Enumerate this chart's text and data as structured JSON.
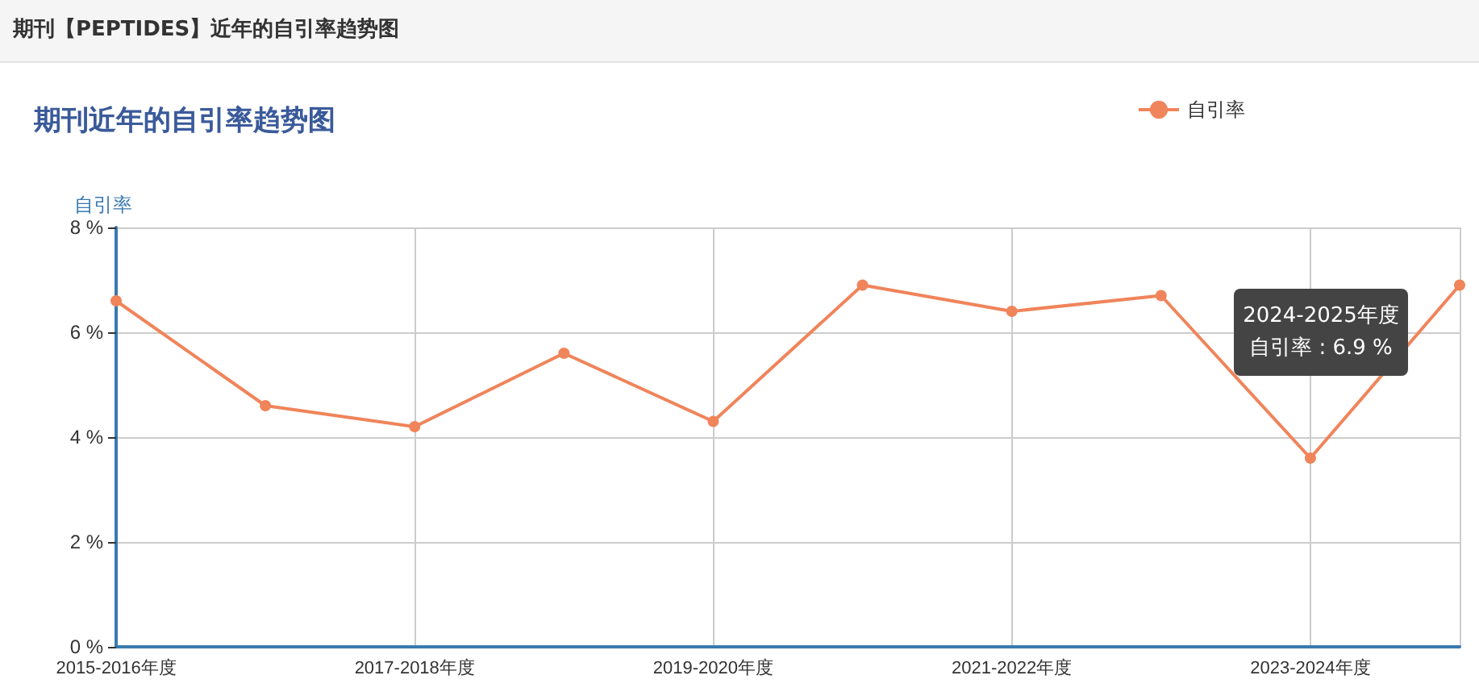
{
  "chart_data": {
    "type": "line",
    "title": "期刊【PEPTIDES】近年的自引率趋势图",
    "subtitle": "期刊近年的自引率趋势图",
    "ylabel": "自引率",
    "categories": [
      "2015-2016年度",
      null,
      "2017-2018年度",
      null,
      "2019-2020年度",
      null,
      "2021-2022年度",
      null,
      "2023-2024年度",
      null
    ],
    "series": [
      {
        "name": "自引率",
        "color": "#f0845a",
        "values": [
          6.6,
          4.6,
          4.2,
          5.6,
          4.3,
          6.9,
          6.4,
          6.7,
          3.6,
          6.9
        ]
      }
    ],
    "ylim": [
      0,
      8
    ],
    "yticks": [
      {
        "value": 0,
        "label": "0 %"
      },
      {
        "value": 2,
        "label": "2 %"
      },
      {
        "value": 4,
        "label": "4 %"
      },
      {
        "value": 6,
        "label": "6 %"
      },
      {
        "value": 8,
        "label": "8 %"
      }
    ],
    "grid": true,
    "legend": "top right",
    "marker": "circle",
    "line_style": "solid",
    "annotations": [
      "2024-2025年度",
      "自引率 : 6.9 %"
    ]
  }
}
